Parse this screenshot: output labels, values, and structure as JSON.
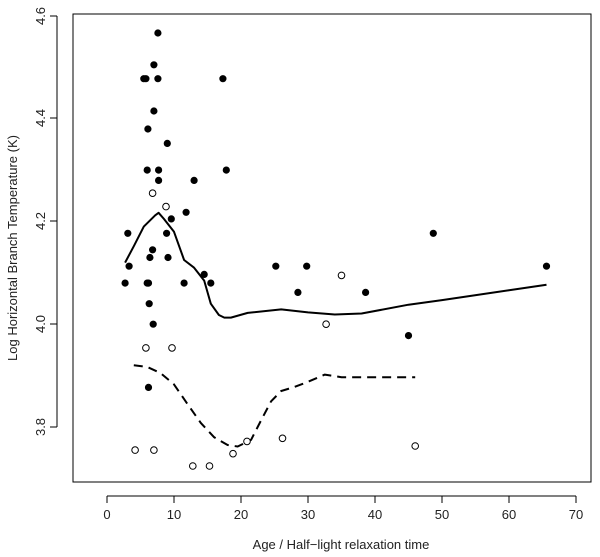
{
  "chart_data": {
    "type": "scatter",
    "title": "",
    "xlabel": "Age / Half−light relaxation time",
    "ylabel": "Log Horizontal Branch Temperature (K)",
    "xlim": [
      -3.5,
      73
    ],
    "ylim": [
      3.7,
      4.6
    ],
    "x_ticks": [
      0,
      10,
      20,
      30,
      40,
      50,
      60,
      70
    ],
    "x_tick_labels": [
      "0",
      "10",
      "20",
      "30",
      "40",
      "50",
      "60",
      "70"
    ],
    "y_ticks": [
      3.8,
      4.0,
      4.2,
      4.4,
      4.6
    ],
    "y_tick_labels": [
      "3.8",
      "4.0",
      "4.2",
      "4.4",
      "4.6"
    ],
    "grid": false,
    "series": [
      {
        "name": "filled",
        "marker": "filled-circle",
        "color": "#000000",
        "points": [
          [
            2.7,
            4.08
          ],
          [
            3.1,
            4.177
          ],
          [
            3.3,
            4.113
          ],
          [
            5.5,
            4.478
          ],
          [
            5.8,
            4.478
          ],
          [
            6.0,
            4.3
          ],
          [
            6.1,
            4.38
          ],
          [
            6.0,
            4.08
          ],
          [
            6.2,
            4.08
          ],
          [
            6.3,
            4.04
          ],
          [
            6.4,
            4.13
          ],
          [
            6.8,
            4.145
          ],
          [
            7.0,
            4.505
          ],
          [
            7.0,
            4.415
          ],
          [
            6.9,
            4.0
          ],
          [
            6.2,
            3.877
          ],
          [
            7.6,
            4.567
          ],
          [
            7.6,
            4.478
          ],
          [
            7.7,
            4.3
          ],
          [
            7.7,
            4.28
          ],
          [
            9.0,
            4.352
          ],
          [
            8.9,
            4.177
          ],
          [
            9.1,
            4.13
          ],
          [
            9.6,
            4.205
          ],
          [
            11.5,
            4.08
          ],
          [
            11.8,
            4.218
          ],
          [
            13.0,
            4.28
          ],
          [
            14.5,
            4.097
          ],
          [
            15.5,
            4.08
          ],
          [
            17.3,
            4.478
          ],
          [
            17.8,
            4.3
          ],
          [
            25.2,
            4.113
          ],
          [
            28.5,
            4.062
          ],
          [
            29.8,
            4.113
          ],
          [
            38.6,
            4.062
          ],
          [
            45.0,
            3.978
          ],
          [
            48.7,
            4.177
          ],
          [
            65.6,
            4.113
          ]
        ]
      },
      {
        "name": "open",
        "marker": "open-circle",
        "color": "#000000",
        "points": [
          [
            4.2,
            3.755
          ],
          [
            5.8,
            3.954
          ],
          [
            7.0,
            3.755
          ],
          [
            6.8,
            4.255
          ],
          [
            8.8,
            4.229
          ],
          [
            9.7,
            3.954
          ],
          [
            12.8,
            3.724
          ],
          [
            15.3,
            3.724
          ],
          [
            18.8,
            3.748
          ],
          [
            20.9,
            3.772
          ],
          [
            26.2,
            3.778
          ],
          [
            32.7,
            4.0
          ],
          [
            35.0,
            4.095
          ],
          [
            46.0,
            3.763
          ]
        ]
      }
    ],
    "lines": [
      {
        "name": "solid-curve",
        "style": "solid",
        "points": [
          [
            2.7,
            4.12
          ],
          [
            4.0,
            4.152
          ],
          [
            5.5,
            4.19
          ],
          [
            7.2,
            4.212
          ],
          [
            7.7,
            4.217
          ],
          [
            8.5,
            4.205
          ],
          [
            10.0,
            4.18
          ],
          [
            11.5,
            4.125
          ],
          [
            13.0,
            4.11
          ],
          [
            14.5,
            4.085
          ],
          [
            15.5,
            4.04
          ],
          [
            16.7,
            4.018
          ],
          [
            17.5,
            4.013
          ],
          [
            18.5,
            4.013
          ],
          [
            21.0,
            4.022
          ],
          [
            26.0,
            4.029
          ],
          [
            30.0,
            4.023
          ],
          [
            34.0,
            4.019
          ],
          [
            38.0,
            4.021
          ],
          [
            45.0,
            4.038
          ],
          [
            50.0,
            4.047
          ],
          [
            60.0,
            4.066
          ],
          [
            65.6,
            4.077
          ]
        ]
      },
      {
        "name": "dashed-curve",
        "style": "dashed",
        "points": [
          [
            4.0,
            3.92
          ],
          [
            6.0,
            3.917
          ],
          [
            8.0,
            3.905
          ],
          [
            10.0,
            3.883
          ],
          [
            12.0,
            3.845
          ],
          [
            14.0,
            3.808
          ],
          [
            16.0,
            3.78
          ],
          [
            18.0,
            3.765
          ],
          [
            19.5,
            3.762
          ],
          [
            21.5,
            3.775
          ],
          [
            23.0,
            3.813
          ],
          [
            24.5,
            3.85
          ],
          [
            26.0,
            3.87
          ],
          [
            28.0,
            3.878
          ],
          [
            30.0,
            3.888
          ],
          [
            32.5,
            3.902
          ],
          [
            35.0,
            3.897
          ],
          [
            40.0,
            3.897
          ],
          [
            46.0,
            3.897
          ]
        ]
      }
    ]
  }
}
